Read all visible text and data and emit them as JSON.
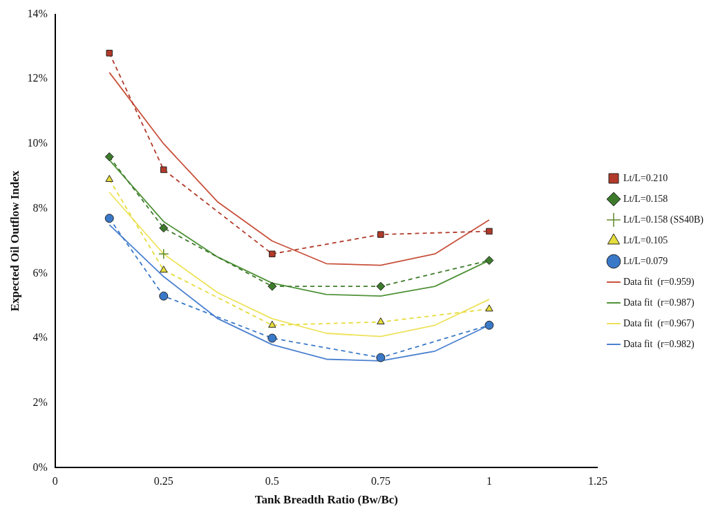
{
  "chart_data": {
    "type": "line",
    "xlabel": "Tank Breadth Ratio (Bw/Bc)",
    "ylabel": "Expected Oil Outflow Index",
    "xlim": [
      0,
      1.25
    ],
    "xticks": [
      0,
      0.25,
      0.5,
      0.75,
      1,
      1.25
    ],
    "ylim": [
      0,
      14
    ],
    "yticks": [
      {
        "value": 0,
        "label": "0%"
      },
      {
        "value": 2,
        "label": "2%"
      },
      {
        "value": 4,
        "label": "4%"
      },
      {
        "value": 6,
        "label": "6%"
      },
      {
        "value": 8,
        "label": "8%"
      },
      {
        "value": 10,
        "label": "10%"
      },
      {
        "value": 12,
        "label": "12%"
      },
      {
        "value": 14,
        "label": "14%"
      }
    ],
    "grid": false,
    "legend": "right",
    "series": [
      {
        "name": "Lt/L=0.210",
        "color": "#b23a2a",
        "marker": "square",
        "line_style": "dashed",
        "x": [
          0.125,
          0.25,
          0.5,
          0.75,
          1
        ],
        "values": [
          12.8,
          9.2,
          6.6,
          7.2,
          7.3
        ]
      },
      {
        "name": "Lt/L=0.158",
        "color": "#3d7a2c",
        "marker": "diamond",
        "line_style": "dashed",
        "x": [
          0.125,
          0.25,
          0.5,
          0.75,
          1
        ],
        "values": [
          9.6,
          7.4,
          5.6,
          5.6,
          6.4
        ]
      },
      {
        "name": "Lt/L=0.158 (SS40B)",
        "color": "#5f8a2a",
        "marker": "cross",
        "line_style": "none",
        "x": [
          0.25
        ],
        "values": [
          6.6
        ]
      },
      {
        "name": "Lt/L=0.105",
        "color": "#e6dc3c",
        "marker": "triangle",
        "line_style": "dashed",
        "x": [
          0.125,
          0.25,
          0.5,
          0.75,
          1
        ],
        "values": [
          8.9,
          6.1,
          4.4,
          4.5,
          4.9
        ]
      },
      {
        "name": "Lt/L=0.079",
        "color": "#3a78c8",
        "marker": "circle",
        "line_style": "dashed",
        "x": [
          0.125,
          0.25,
          0.5,
          0.75,
          1
        ],
        "values": [
          7.7,
          5.3,
          4.0,
          3.4,
          4.4
        ]
      },
      {
        "name": "Data fit  (r=0.959)",
        "color": "#c8503a",
        "marker": "none",
        "line_style": "solid",
        "x": [
          0.125,
          0.25,
          0.375,
          0.5,
          0.625,
          0.75,
          0.875,
          1
        ],
        "values": [
          12.2,
          10.0,
          8.2,
          7.0,
          6.3,
          6.25,
          6.6,
          7.65
        ]
      },
      {
        "name": "Data fit  (r=0.987)",
        "color": "#4f9238",
        "marker": "none",
        "line_style": "solid",
        "x": [
          0.125,
          0.25,
          0.375,
          0.5,
          0.625,
          0.75,
          0.875,
          1
        ],
        "values": [
          9.5,
          7.6,
          6.5,
          5.7,
          5.35,
          5.3,
          5.6,
          6.4
        ]
      },
      {
        "name": "Data fit  (r=0.967)",
        "color": "#eee25a",
        "marker": "none",
        "line_style": "solid",
        "x": [
          0.125,
          0.25,
          0.375,
          0.5,
          0.625,
          0.75,
          0.875,
          1
        ],
        "values": [
          8.5,
          6.6,
          5.4,
          4.6,
          4.15,
          4.05,
          4.4,
          5.2
        ]
      },
      {
        "name": "Data fit  (r=0.982)",
        "color": "#4a80d0",
        "marker": "none",
        "line_style": "solid",
        "x": [
          0.125,
          0.25,
          0.375,
          0.5,
          0.625,
          0.75,
          0.875,
          1
        ],
        "values": [
          7.5,
          5.9,
          4.6,
          3.8,
          3.35,
          3.3,
          3.6,
          4.4
        ]
      }
    ]
  }
}
